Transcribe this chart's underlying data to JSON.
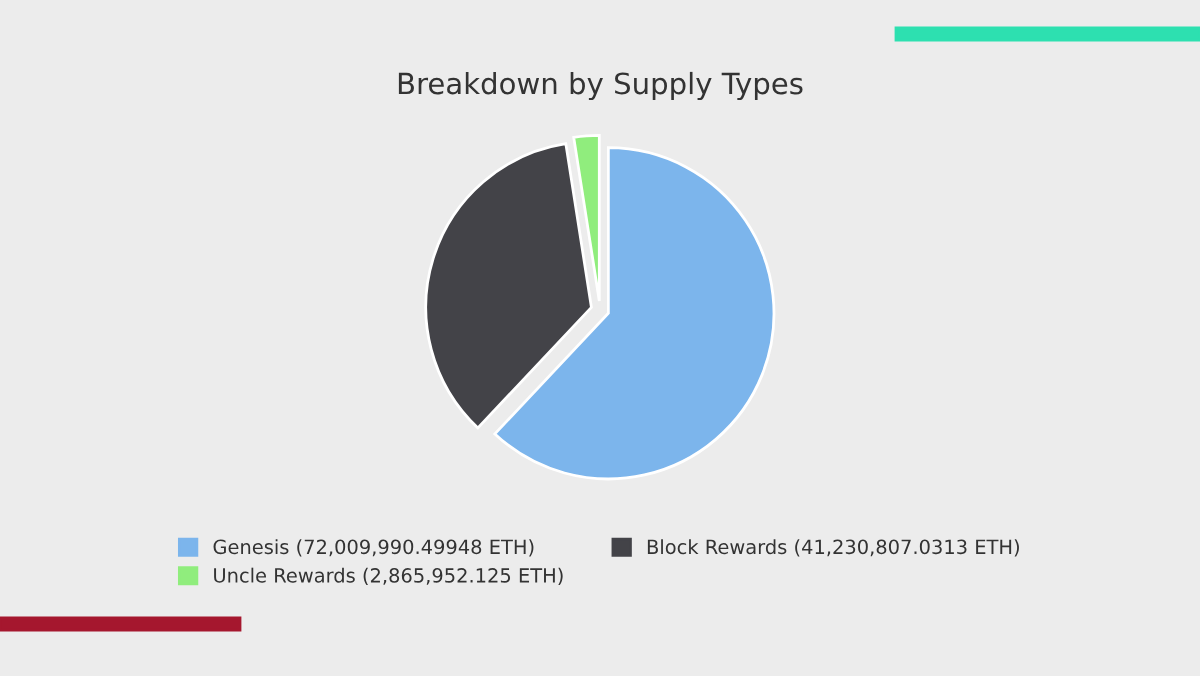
{
  "chart_data": {
    "type": "pie",
    "title": "Breakdown by Supply Types",
    "categories": [
      "Genesis (72,009,990.49948 ETH)",
      "Block Rewards (41,230,807.0313 ETH)",
      "Uncle Rewards (2,865,952.125 ETH)"
    ],
    "values": [
      72009990.49948,
      41230807.0313,
      2865952.125
    ],
    "colors": [
      "#7cb5ec",
      "#434348",
      "#90ed7d"
    ],
    "legend": "bottom"
  }
}
